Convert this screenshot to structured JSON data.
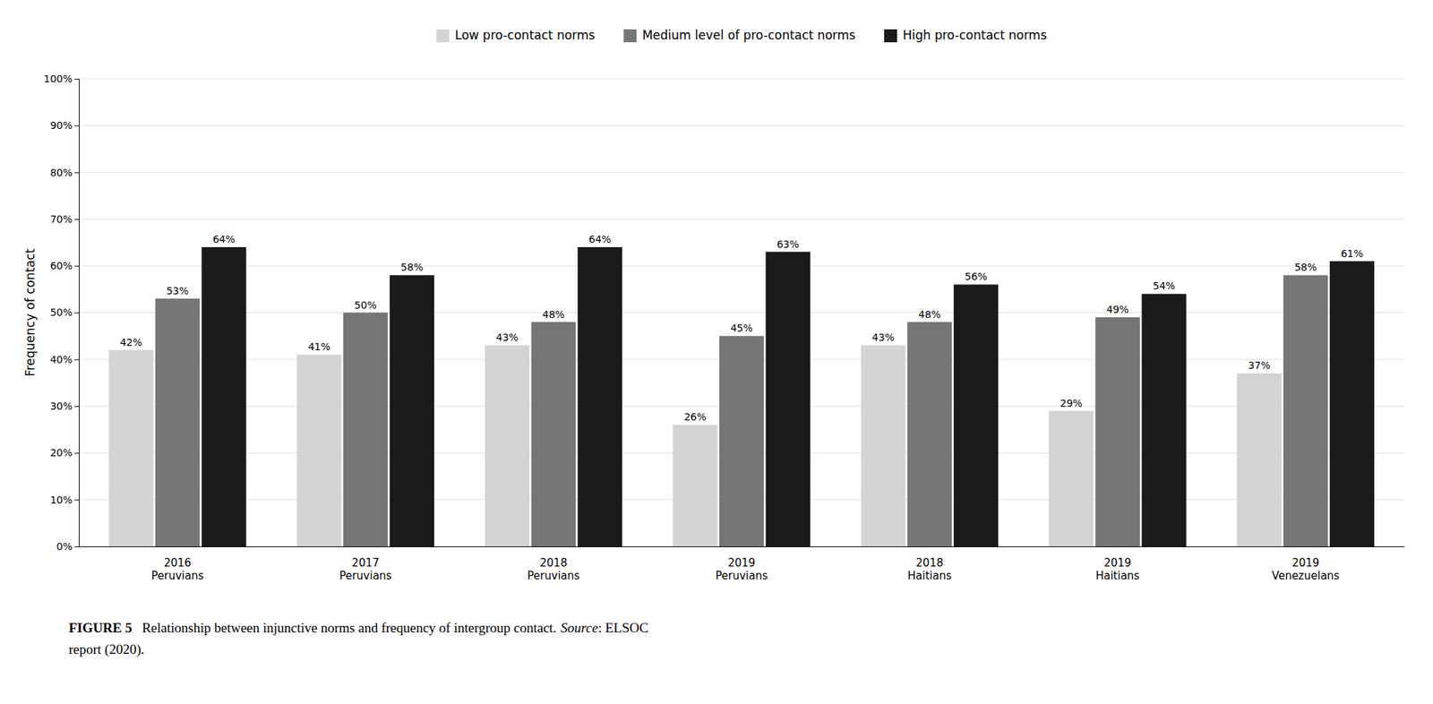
{
  "chart_data": {
    "type": "bar",
    "categories": [
      "2016\nPeruvians",
      "2017\nPeruvians",
      "2018\nPeruvians",
      "2019\nPeruvians",
      "2018\nHaitians",
      "2019\nHaitians",
      "2019\nVenezuelans"
    ],
    "series": [
      {
        "name": "Low pro-contact norms",
        "color": "#d4d4d4",
        "values": [
          42,
          41,
          43,
          26,
          43,
          29,
          37
        ],
        "value_labels": [
          "42%",
          "41%",
          "43%",
          "26%",
          "43%",
          "29%",
          "37%"
        ]
      },
      {
        "name": "Medium level of pro-contact norms",
        "color": "#767676",
        "values": [
          53,
          50,
          48,
          45,
          48,
          49,
          58
        ],
        "value_labels": [
          "53%",
          "50%",
          "48%",
          "45%",
          "48%",
          "49%",
          "58%"
        ]
      },
      {
        "name": "High pro-contact norms",
        "color": "#1a1a1a",
        "values": [
          64,
          58,
          64,
          63,
          56,
          54,
          61
        ],
        "value_labels": [
          "64%",
          "58%",
          "64%",
          "63%",
          "56%",
          "54%",
          "61%"
        ]
      }
    ],
    "y_label": "Frequency of contact",
    "ylim": [
      0,
      100
    ],
    "yticks": [
      {
        "value": 0,
        "label": "0%"
      },
      {
        "value": 10,
        "label": "10%"
      },
      {
        "value": 20,
        "label": "20%"
      },
      {
        "value": 30,
        "label": "30%"
      },
      {
        "value": 40,
        "label": "40%"
      },
      {
        "value": 50,
        "label": "50%"
      },
      {
        "value": 60,
        "label": "60%"
      },
      {
        "value": 70,
        "label": "70%"
      },
      {
        "value": 80,
        "label": "80%"
      },
      {
        "value": 90,
        "label": "90%"
      },
      {
        "value": 100,
        "label": "100%"
      }
    ],
    "grid": true,
    "legend": "top",
    "data_labels": true,
    "annotations": [
      "FIGURE 5",
      "Relationship between injunctive norms and frequency of intergroup contact.",
      "Source",
      ": ELSOC",
      "report (",
      "2020",
      ")."
    ]
  }
}
